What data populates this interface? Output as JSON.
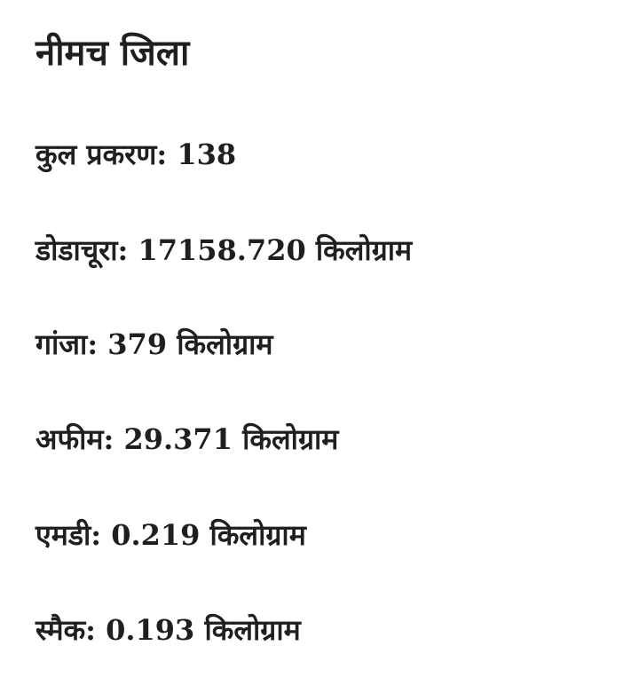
{
  "title": "नीमच जिला",
  "items": [
    {
      "text": "कुल प्रकरण: 138"
    },
    {
      "text": "डोडाचूरा: 17158.720 किलोग्राम"
    },
    {
      "text": "गांजा: 379 किलोग्राम"
    },
    {
      "text": "अफीम: 29.371 किलोग्राम"
    },
    {
      "text": "एमडी: 0.219 किलोग्राम"
    },
    {
      "text": "स्मैक: 0.193 किलोग्राम"
    }
  ]
}
